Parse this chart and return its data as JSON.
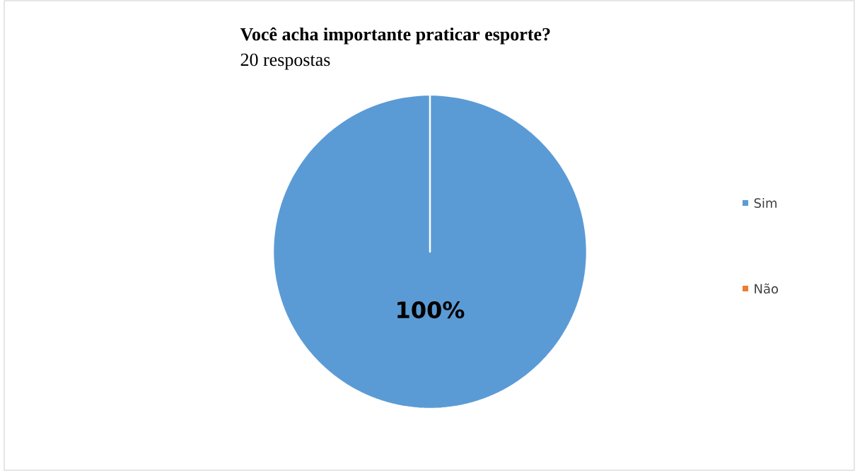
{
  "chart_data": {
    "type": "pie",
    "title": "Você acha importante praticar esporte?",
    "subtitle": "20 respostas",
    "categories": [
      "Sim",
      "Não"
    ],
    "values": [
      100,
      0
    ],
    "colors": [
      "#5b9bd5",
      "#ed7d31"
    ],
    "value_labels": [
      "100%",
      null
    ],
    "legend": "right"
  }
}
